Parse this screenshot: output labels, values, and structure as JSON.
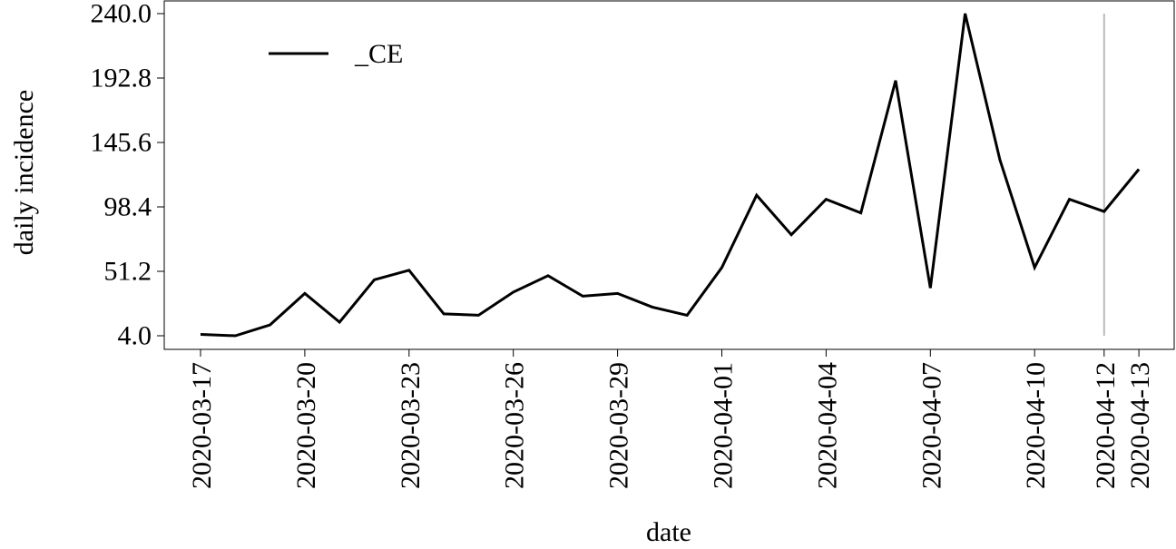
{
  "chart_data": {
    "type": "line",
    "xlabel": "date",
    "ylabel": "daily incidence",
    "ylim": [
      4.0,
      240.0
    ],
    "y_ticks": [
      "4.0",
      "51.2",
      "98.4",
      "145.6",
      "192.8",
      "240.0"
    ],
    "x_tick_labels": [
      "2020-03-17",
      "2020-03-20",
      "2020-03-23",
      "2020-03-26",
      "2020-03-29",
      "2020-04-01",
      "2020-04-04",
      "2020-04-07",
      "2020-04-10",
      "2020-04-12",
      "2020-04-13"
    ],
    "x": [
      "2020-03-17",
      "2020-03-18",
      "2020-03-19",
      "2020-03-20",
      "2020-03-21",
      "2020-03-22",
      "2020-03-23",
      "2020-03-24",
      "2020-03-25",
      "2020-03-26",
      "2020-03-27",
      "2020-03-28",
      "2020-03-29",
      "2020-03-30",
      "2020-03-31",
      "2020-04-01",
      "2020-04-02",
      "2020-04-03",
      "2020-04-04",
      "2020-04-05",
      "2020-04-06",
      "2020-04-07",
      "2020-04-08",
      "2020-04-09",
      "2020-04-10",
      "2020-04-11",
      "2020-04-12",
      "2020-04-13"
    ],
    "series": [
      {
        "name": "_CE",
        "color": "#000000",
        "values": [
          5,
          4,
          12,
          35,
          14,
          45,
          52,
          20,
          19,
          36,
          48,
          33,
          35,
          25,
          19,
          54,
          107,
          78,
          104,
          94,
          191,
          39,
          240,
          133,
          54,
          104,
          95,
          126
        ]
      }
    ],
    "vline": {
      "x": "2020-04-12",
      "color": "#bbbbbb"
    },
    "legend": {
      "position": "top-left",
      "entries": [
        "_CE"
      ]
    },
    "grid": false
  }
}
